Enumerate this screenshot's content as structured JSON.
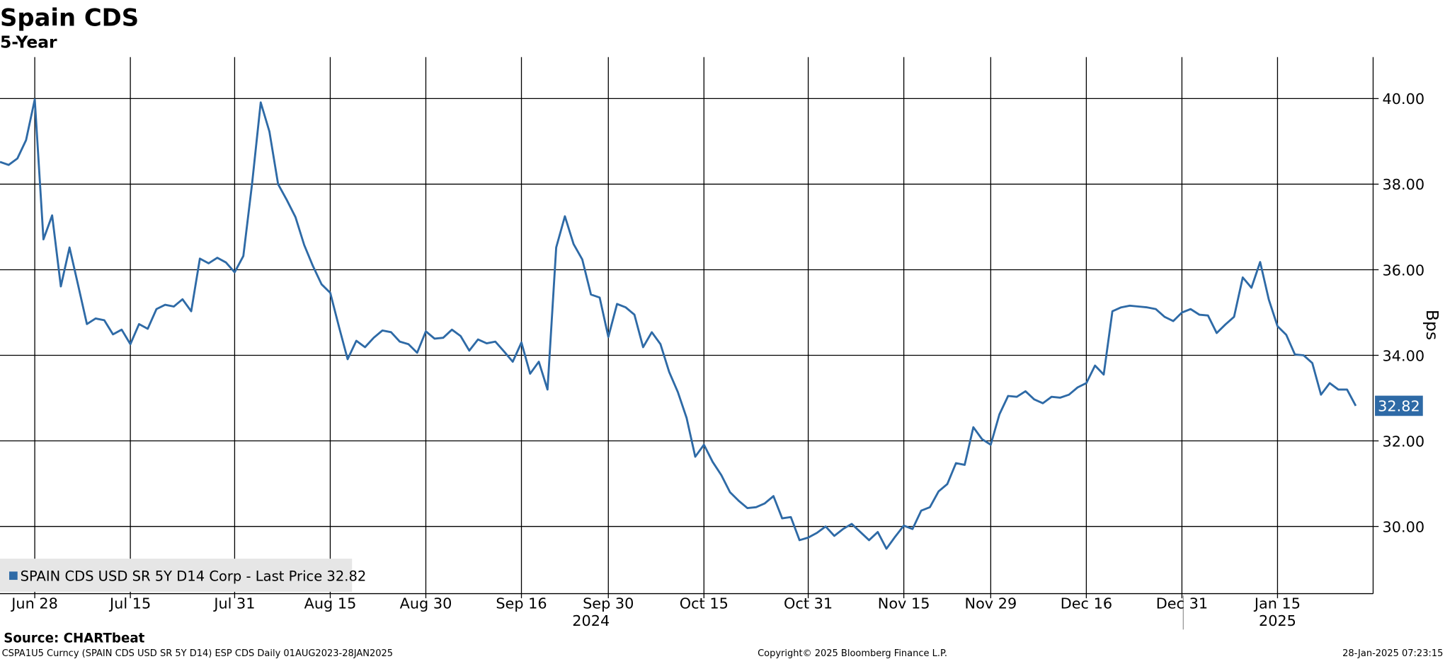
{
  "chart_data": {
    "type": "line",
    "title": "Spain CDS",
    "subtitle": "5-Year",
    "y_label": "Bps",
    "source": "Source: CHARTbeat",
    "footnote": "CSPA1U5 Curncy (SPAIN CDS USD SR 5Y D14) ESP CDS  Daily 01AUG2023-28JAN2025",
    "copyright": "Copyright© 2025 Bloomberg Finance L.P.",
    "timestamp": "28-Jan-2025 07:23:15",
    "grid": true,
    "x": [
      "2024-06-24",
      "2024-06-25",
      "2024-06-26",
      "2024-06-27",
      "2024-06-28",
      "2024-07-01",
      "2024-07-02",
      "2024-07-03",
      "2024-07-04",
      "2024-07-05",
      "2024-07-08",
      "2024-07-09",
      "2024-07-10",
      "2024-07-11",
      "2024-07-12",
      "2024-07-15",
      "2024-07-16",
      "2024-07-17",
      "2024-07-18",
      "2024-07-19",
      "2024-07-22",
      "2024-07-23",
      "2024-07-24",
      "2024-07-25",
      "2024-07-26",
      "2024-07-29",
      "2024-07-30",
      "2024-07-31",
      "2024-08-01",
      "2024-08-02",
      "2024-08-05",
      "2024-08-06",
      "2024-08-07",
      "2024-08-08",
      "2024-08-09",
      "2024-08-12",
      "2024-08-13",
      "2024-08-14",
      "2024-08-15",
      "2024-08-16",
      "2024-08-19",
      "2024-08-20",
      "2024-08-21",
      "2024-08-22",
      "2024-08-23",
      "2024-08-26",
      "2024-08-27",
      "2024-08-28",
      "2024-08-29",
      "2024-08-30",
      "2024-09-02",
      "2024-09-03",
      "2024-09-04",
      "2024-09-05",
      "2024-09-06",
      "2024-09-09",
      "2024-09-10",
      "2024-09-11",
      "2024-09-12",
      "2024-09-13",
      "2024-09-16",
      "2024-09-17",
      "2024-09-18",
      "2024-09-19",
      "2024-09-20",
      "2024-09-23",
      "2024-09-24",
      "2024-09-25",
      "2024-09-26",
      "2024-09-27",
      "2024-09-30",
      "2024-10-01",
      "2024-10-02",
      "2024-10-03",
      "2024-10-04",
      "2024-10-07",
      "2024-10-08",
      "2024-10-09",
      "2024-10-10",
      "2024-10-11",
      "2024-10-14",
      "2024-10-15",
      "2024-10-16",
      "2024-10-17",
      "2024-10-18",
      "2024-10-21",
      "2024-10-22",
      "2024-10-23",
      "2024-10-24",
      "2024-10-25",
      "2024-10-28",
      "2024-10-29",
      "2024-10-30",
      "2024-10-31",
      "2024-11-01",
      "2024-11-04",
      "2024-11-05",
      "2024-11-06",
      "2024-11-07",
      "2024-11-08",
      "2024-11-11",
      "2024-11-12",
      "2024-11-13",
      "2024-11-14",
      "2024-11-15",
      "2024-11-18",
      "2024-11-19",
      "2024-11-20",
      "2024-11-21",
      "2024-11-22",
      "2024-11-25",
      "2024-11-26",
      "2024-11-27",
      "2024-11-28",
      "2024-11-29",
      "2024-12-02",
      "2024-12-03",
      "2024-12-04",
      "2024-12-05",
      "2024-12-06",
      "2024-12-09",
      "2024-12-10",
      "2024-12-11",
      "2024-12-12",
      "2024-12-13",
      "2024-12-16",
      "2024-12-17",
      "2024-12-18",
      "2024-12-19",
      "2024-12-20",
      "2024-12-23",
      "2024-12-24",
      "2024-12-25",
      "2024-12-26",
      "2024-12-27",
      "2024-12-30",
      "2024-12-31",
      "2025-01-01",
      "2025-01-02",
      "2025-01-03",
      "2025-01-06",
      "2025-01-07",
      "2025-01-08",
      "2025-01-09",
      "2025-01-10",
      "2025-01-13",
      "2025-01-14",
      "2025-01-15",
      "2025-01-16",
      "2025-01-17",
      "2025-01-20",
      "2025-01-21",
      "2025-01-22",
      "2025-01-23",
      "2025-01-24",
      "2025-01-27",
      "2025-01-28"
    ],
    "series": [
      {
        "name": "SPAIN CDS USD SR 5Y D14 Corp - Last Price 32.82",
        "color": "#2e6aa6",
        "values": [
          38.52,
          38.45,
          38.6,
          39.03,
          39.98,
          36.71,
          37.27,
          35.61,
          36.52,
          35.63,
          34.73,
          34.86,
          34.82,
          34.49,
          34.6,
          34.26,
          34.73,
          34.62,
          35.08,
          35.18,
          35.14,
          35.31,
          35.03,
          36.26,
          36.15,
          36.28,
          36.17,
          35.94,
          36.32,
          38.0,
          39.91,
          39.23,
          38.0,
          37.63,
          37.23,
          36.58,
          36.09,
          35.66,
          35.46,
          34.67,
          33.91,
          34.34,
          34.19,
          34.41,
          34.58,
          34.54,
          34.32,
          34.26,
          34.06,
          34.56,
          34.39,
          34.41,
          34.6,
          34.45,
          34.11,
          34.37,
          34.28,
          34.32,
          34.09,
          33.85,
          34.3,
          33.57,
          33.85,
          33.2,
          36.52,
          37.25,
          36.6,
          36.24,
          35.42,
          35.35,
          34.43,
          35.2,
          35.12,
          34.95,
          34.19,
          34.54,
          34.26,
          33.61,
          33.14,
          32.54,
          31.63,
          31.91,
          31.51,
          31.2,
          30.8,
          30.6,
          30.43,
          30.45,
          30.54,
          30.71,
          30.19,
          30.22,
          29.68,
          29.74,
          29.85,
          30.0,
          29.78,
          29.94,
          30.06,
          29.87,
          29.68,
          29.87,
          29.48,
          29.76,
          30.02,
          29.94,
          30.37,
          30.45,
          30.82,
          30.99,
          31.48,
          31.44,
          32.32,
          32.04,
          31.91,
          32.62,
          33.05,
          33.03,
          33.16,
          32.97,
          32.88,
          33.03,
          33.01,
          33.08,
          33.25,
          33.35,
          33.76,
          33.55,
          35.03,
          35.12,
          35.16,
          35.14,
          35.12,
          35.08,
          34.9,
          34.8,
          35.0,
          35.08,
          34.95,
          34.93,
          34.52,
          34.72,
          34.9,
          35.82,
          35.58,
          36.18,
          35.3,
          34.68,
          34.48,
          34.02,
          34.0,
          33.82,
          33.08,
          33.35,
          33.2,
          33.2,
          32.82
        ]
      }
    ],
    "xlim": [
      "2024-06-24",
      "2025-01-30"
    ],
    "xticks": [
      {
        "value": "2024-06-28",
        "label": "Jun 28"
      },
      {
        "value": "2024-07-15",
        "label": "Jul 15"
      },
      {
        "value": "2024-07-31",
        "label": "Jul 31"
      },
      {
        "value": "2024-08-15",
        "label": "Aug 15"
      },
      {
        "value": "2024-08-30",
        "label": "Aug 30"
      },
      {
        "value": "2024-09-16",
        "label": "Sep 16"
      },
      {
        "value": "2024-09-30",
        "label": "Sep 30"
      },
      {
        "value": "2024-10-15",
        "label": "Oct 15"
      },
      {
        "value": "2024-10-31",
        "label": "Oct 31"
      },
      {
        "value": "2024-11-15",
        "label": "Nov 15"
      },
      {
        "value": "2024-11-29",
        "label": "Nov 29"
      },
      {
        "value": "2024-12-16",
        "label": "Dec 16"
      },
      {
        "value": "2024-12-31",
        "label": "Dec 31"
      },
      {
        "value": "2025-01-15",
        "label": "Jan 15"
      }
    ],
    "x_year_labels": [
      {
        "value": "2024-09-26",
        "label": "2024"
      },
      {
        "value": "2025-01-15",
        "label": "2025"
      }
    ],
    "ylim": [
      28.43,
      40.97
    ],
    "yticks": [
      {
        "value": 30,
        "label": "30.00"
      },
      {
        "value": 32,
        "label": "32.00"
      },
      {
        "value": 34,
        "label": "34.00"
      },
      {
        "value": 36,
        "label": "36.00"
      },
      {
        "value": 38,
        "label": "38.00"
      },
      {
        "value": 40,
        "label": "40.00"
      }
    ],
    "legend": "bottom-left"
  }
}
